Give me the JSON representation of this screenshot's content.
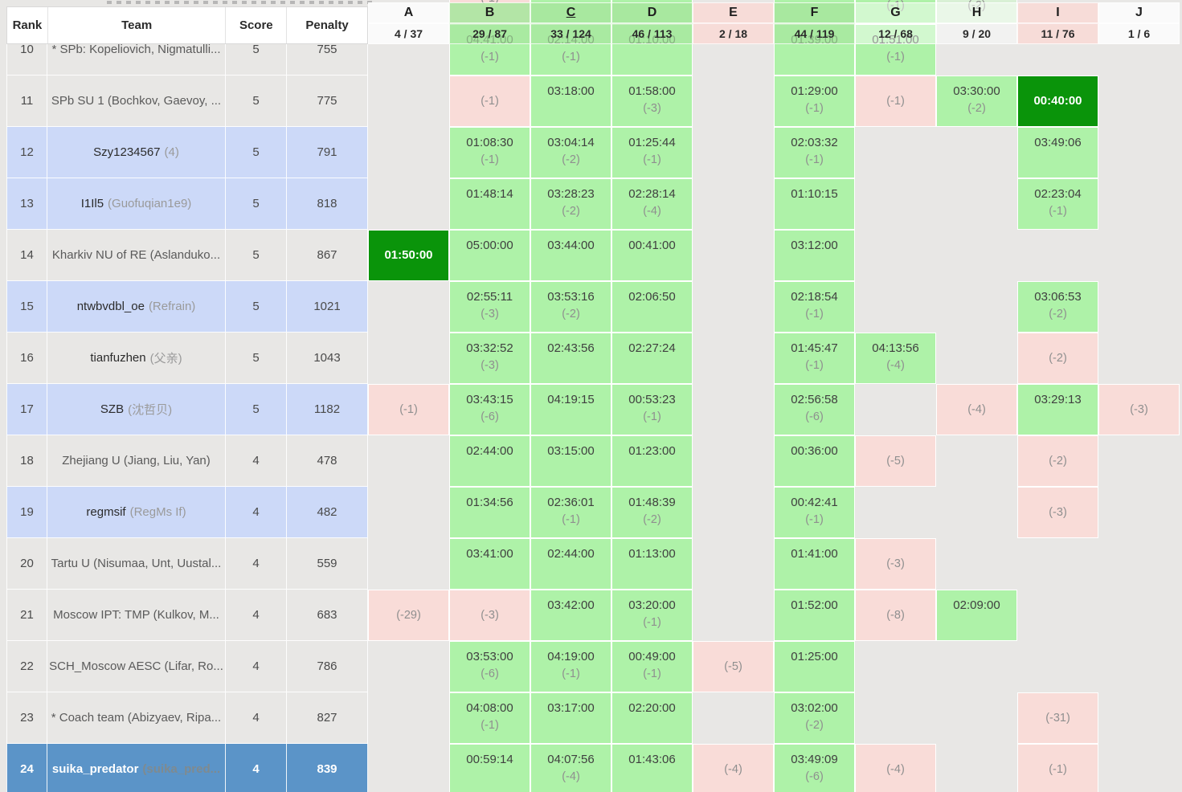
{
  "colors": {
    "page_gray": "#e8e7e5",
    "solved_green": "#aef2a8",
    "failed_pink": "#f9dcd8",
    "first_solver_green": "#0a940a",
    "pale_green": "#d9f0d5",
    "stripe_blue": "#ccd9f8",
    "me_row_blue": "#5b94c8"
  },
  "table": {
    "columns": {
      "rank": "Rank",
      "team": "Team",
      "score": "Score",
      "penalty": "Penalty"
    },
    "problems": [
      {
        "id": "A",
        "ratio": "4 / 37",
        "header_state": "clean"
      },
      {
        "id": "B",
        "ratio": "29 / 87",
        "header_state": "solved"
      },
      {
        "id": "C",
        "ratio": "33 / 124",
        "header_state": "solved",
        "underlined": true
      },
      {
        "id": "D",
        "ratio": "46 / 113",
        "header_state": "solved"
      },
      {
        "id": "E",
        "ratio": "2 / 18",
        "header_state": "failed"
      },
      {
        "id": "F",
        "ratio": "44 / 119",
        "header_state": "solved"
      },
      {
        "id": "G",
        "ratio": "12 / 68",
        "header_state": "translucent"
      },
      {
        "id": "H",
        "ratio": "9 / 20",
        "header_state": "translucent"
      },
      {
        "id": "I",
        "ratio": "11 / 76",
        "header_state": "failed"
      },
      {
        "id": "J",
        "ratio": "1 / 6",
        "header_state": "clean"
      }
    ],
    "partial_top_row": {
      "cells": [
        {
          "p": "B",
          "type": "failed",
          "sub": "(-1)"
        },
        {
          "p": "C",
          "type": "solved",
          "time": ""
        },
        {
          "p": "D",
          "type": "solved",
          "time": ""
        },
        {
          "p": "F",
          "type": "solved",
          "time": ""
        },
        {
          "p": "G",
          "type": "solved",
          "time": "",
          "sub": "(-1)"
        },
        {
          "p": "H",
          "type": "pale",
          "time": "",
          "sub": "(-2)"
        }
      ]
    },
    "rows": [
      {
        "rank": "10",
        "team": "* SPb: Kopeliovich, Nigmatulli...",
        "handle": "",
        "bg": "gray",
        "split": false,
        "score": "5",
        "penalty": "755",
        "cells": [
          {
            "p": "B",
            "type": "solved",
            "time": "04:41:00",
            "sub": "(-1)"
          },
          {
            "p": "C",
            "type": "solved",
            "time": "02:14:00",
            "sub": "(-1)"
          },
          {
            "p": "D",
            "type": "solved",
            "time": "01:10:00"
          },
          {
            "p": "F",
            "type": "solved",
            "time": "01:39:00"
          },
          {
            "p": "G",
            "type": "solved",
            "time": "01:51:00",
            "sub": "(-1)"
          }
        ]
      },
      {
        "rank": "11",
        "team": "SPb SU 1 (Bochkov, Gaevoy, ...",
        "handle": "",
        "bg": "gray",
        "split": false,
        "score": "5",
        "penalty": "775",
        "cells": [
          {
            "p": "B",
            "type": "failed",
            "sub": "(-1)"
          },
          {
            "p": "C",
            "type": "solved",
            "time": "03:18:00"
          },
          {
            "p": "D",
            "type": "solved",
            "time": "01:58:00",
            "sub": "(-3)"
          },
          {
            "p": "F",
            "type": "solved",
            "time": "01:29:00",
            "sub": "(-1)"
          },
          {
            "p": "G",
            "type": "failed",
            "sub": "(-1)"
          },
          {
            "p": "H",
            "type": "solved",
            "time": "03:30:00",
            "sub": "(-2)"
          },
          {
            "p": "I",
            "type": "first",
            "time": "00:40:00"
          }
        ]
      },
      {
        "rank": "12",
        "team": "Szy1234567",
        "handle": "(4)",
        "bg": "blue",
        "split": true,
        "score": "5",
        "penalty": "791",
        "cells": [
          {
            "p": "B",
            "type": "solved",
            "time": "01:08:30",
            "sub": "(-1)"
          },
          {
            "p": "C",
            "type": "solved",
            "time": "03:04:14",
            "sub": "(-2)"
          },
          {
            "p": "D",
            "type": "solved",
            "time": "01:25:44",
            "sub": "(-1)"
          },
          {
            "p": "F",
            "type": "solved",
            "time": "02:03:32",
            "sub": "(-1)"
          },
          {
            "p": "I",
            "type": "solved",
            "time": "03:49:06"
          }
        ]
      },
      {
        "rank": "13",
        "team": "I1Il5",
        "handle": "(Guofuqian1e9)",
        "bg": "blue",
        "split": true,
        "score": "5",
        "penalty": "818",
        "cells": [
          {
            "p": "B",
            "type": "solved",
            "time": "01:48:14"
          },
          {
            "p": "C",
            "type": "solved",
            "time": "03:28:23",
            "sub": "(-2)"
          },
          {
            "p": "D",
            "type": "solved",
            "time": "02:28:14",
            "sub": "(-4)"
          },
          {
            "p": "F",
            "type": "solved",
            "time": "01:10:15"
          },
          {
            "p": "I",
            "type": "solved",
            "time": "02:23:04",
            "sub": "(-1)"
          }
        ]
      },
      {
        "rank": "14",
        "team": "Kharkiv NU of RE (Aslanduko...",
        "handle": "",
        "bg": "gray",
        "split": false,
        "score": "5",
        "penalty": "867",
        "cells": [
          {
            "p": "A",
            "type": "first",
            "time": "01:50:00"
          },
          {
            "p": "B",
            "type": "solved",
            "time": "05:00:00"
          },
          {
            "p": "C",
            "type": "solved",
            "time": "03:44:00"
          },
          {
            "p": "D",
            "type": "solved",
            "time": "00:41:00"
          },
          {
            "p": "F",
            "type": "solved",
            "time": "03:12:00"
          }
        ]
      },
      {
        "rank": "15",
        "team": "ntwbvdbl_oe",
        "handle": "(Refrain)",
        "bg": "blue",
        "split": true,
        "score": "5",
        "penalty": "1021",
        "cells": [
          {
            "p": "B",
            "type": "solved",
            "time": "02:55:11",
            "sub": "(-3)"
          },
          {
            "p": "C",
            "type": "solved",
            "time": "03:53:16",
            "sub": "(-2)"
          },
          {
            "p": "D",
            "type": "solved",
            "time": "02:06:50"
          },
          {
            "p": "F",
            "type": "solved",
            "time": "02:18:54",
            "sub": "(-1)"
          },
          {
            "p": "I",
            "type": "solved",
            "time": "03:06:53",
            "sub": "(-2)"
          }
        ]
      },
      {
        "rank": "16",
        "team": "tianfuzhen",
        "handle": "(父亲)",
        "bg": "gray",
        "split": true,
        "score": "5",
        "penalty": "1043",
        "cells": [
          {
            "p": "B",
            "type": "solved",
            "time": "03:32:52",
            "sub": "(-3)"
          },
          {
            "p": "C",
            "type": "solved",
            "time": "02:43:56"
          },
          {
            "p": "D",
            "type": "solved",
            "time": "02:27:24"
          },
          {
            "p": "F",
            "type": "solved",
            "time": "01:45:47",
            "sub": "(-1)"
          },
          {
            "p": "G",
            "type": "solved",
            "time": "04:13:56",
            "sub": "(-4)"
          },
          {
            "p": "I",
            "type": "failed",
            "sub": "(-2)"
          }
        ]
      },
      {
        "rank": "17",
        "team": "SZB",
        "handle": "(沈哲贝)",
        "bg": "blue",
        "split": true,
        "score": "5",
        "penalty": "1182",
        "cells": [
          {
            "p": "A",
            "type": "failed",
            "sub": "(-1)"
          },
          {
            "p": "B",
            "type": "solved",
            "time": "03:43:15",
            "sub": "(-6)"
          },
          {
            "p": "C",
            "type": "solved",
            "time": "04:19:15"
          },
          {
            "p": "D",
            "type": "solved",
            "time": "00:53:23",
            "sub": "(-1)"
          },
          {
            "p": "F",
            "type": "solved",
            "time": "02:56:58",
            "sub": "(-6)"
          },
          {
            "p": "H",
            "type": "failed",
            "sub": "(-4)"
          },
          {
            "p": "I",
            "type": "solved",
            "time": "03:29:13"
          },
          {
            "p": "J",
            "type": "failed",
            "sub": "(-3)"
          }
        ]
      },
      {
        "rank": "18",
        "team": "Zhejiang U (Jiang, Liu, Yan)",
        "handle": "",
        "bg": "gray",
        "split": false,
        "score": "4",
        "penalty": "478",
        "cells": [
          {
            "p": "B",
            "type": "solved",
            "time": "02:44:00"
          },
          {
            "p": "C",
            "type": "solved",
            "time": "03:15:00"
          },
          {
            "p": "D",
            "type": "solved",
            "time": "01:23:00"
          },
          {
            "p": "F",
            "type": "solved",
            "time": "00:36:00"
          },
          {
            "p": "G",
            "type": "failed",
            "sub": "(-5)"
          },
          {
            "p": "I",
            "type": "failed",
            "sub": "(-2)"
          }
        ]
      },
      {
        "rank": "19",
        "team": "regmsif",
        "handle": "(RegMs If)",
        "bg": "blue",
        "split": true,
        "score": "4",
        "penalty": "482",
        "cells": [
          {
            "p": "B",
            "type": "solved",
            "time": "01:34:56"
          },
          {
            "p": "C",
            "type": "solved",
            "time": "02:36:01",
            "sub": "(-1)"
          },
          {
            "p": "D",
            "type": "solved",
            "time": "01:48:39",
            "sub": "(-2)"
          },
          {
            "p": "F",
            "type": "solved",
            "time": "00:42:41",
            "sub": "(-1)"
          },
          {
            "p": "I",
            "type": "failed",
            "sub": "(-3)"
          }
        ]
      },
      {
        "rank": "20",
        "team": "Tartu U (Nisumaa, Unt, Uustal...",
        "handle": "",
        "bg": "gray",
        "split": false,
        "score": "4",
        "penalty": "559",
        "cells": [
          {
            "p": "B",
            "type": "solved",
            "time": "03:41:00"
          },
          {
            "p": "C",
            "type": "solved",
            "time": "02:44:00"
          },
          {
            "p": "D",
            "type": "solved",
            "time": "01:13:00"
          },
          {
            "p": "F",
            "type": "solved",
            "time": "01:41:00"
          },
          {
            "p": "G",
            "type": "failed",
            "sub": "(-3)"
          }
        ]
      },
      {
        "rank": "21",
        "team": "Moscow IPT: TMP (Kulkov, M...",
        "handle": "",
        "bg": "gray",
        "split": false,
        "score": "4",
        "penalty": "683",
        "cells": [
          {
            "p": "A",
            "type": "failed",
            "sub": "(-29)"
          },
          {
            "p": "B",
            "type": "failed",
            "sub": "(-3)"
          },
          {
            "p": "C",
            "type": "solved",
            "time": "03:42:00"
          },
          {
            "p": "D",
            "type": "solved",
            "time": "03:20:00",
            "sub": "(-1)"
          },
          {
            "p": "F",
            "type": "solved",
            "time": "01:52:00"
          },
          {
            "p": "G",
            "type": "failed",
            "sub": "(-8)"
          },
          {
            "p": "H",
            "type": "solved",
            "time": "02:09:00"
          }
        ]
      },
      {
        "rank": "22",
        "team": "SCH_Moscow AESC (Lifar, Ro...",
        "handle": "",
        "bg": "gray",
        "split": false,
        "score": "4",
        "penalty": "786",
        "cells": [
          {
            "p": "B",
            "type": "solved",
            "time": "03:53:00",
            "sub": "(-6)"
          },
          {
            "p": "C",
            "type": "solved",
            "time": "04:19:00",
            "sub": "(-1)"
          },
          {
            "p": "D",
            "type": "solved",
            "time": "00:49:00",
            "sub": "(-1)"
          },
          {
            "p": "E",
            "type": "failed",
            "sub": "(-5)"
          },
          {
            "p": "F",
            "type": "solved",
            "time": "01:25:00"
          }
        ]
      },
      {
        "rank": "23",
        "team": "* Coach team (Abizyaev, Ripa...",
        "handle": "",
        "bg": "gray",
        "split": false,
        "score": "4",
        "penalty": "827",
        "cells": [
          {
            "p": "B",
            "type": "solved",
            "time": "04:08:00",
            "sub": "(-1)"
          },
          {
            "p": "C",
            "type": "solved",
            "time": "03:17:00"
          },
          {
            "p": "D",
            "type": "solved",
            "time": "02:20:00"
          },
          {
            "p": "F",
            "type": "solved",
            "time": "03:02:00",
            "sub": "(-2)"
          },
          {
            "p": "I",
            "type": "failed",
            "sub": "(-31)"
          }
        ]
      },
      {
        "rank": "24",
        "team": "suika_predator",
        "handle": "(suika_pred...",
        "bg": "me",
        "split": true,
        "score": "4",
        "penalty": "839",
        "cells": [
          {
            "p": "B",
            "type": "solved",
            "time": "00:59:14"
          },
          {
            "p": "C",
            "type": "solved",
            "time": "04:07:56",
            "sub": "(-4)"
          },
          {
            "p": "D",
            "type": "solved",
            "time": "01:43:06"
          },
          {
            "p": "E",
            "type": "failed",
            "sub": "(-4)"
          },
          {
            "p": "F",
            "type": "solved",
            "time": "03:49:09",
            "sub": "(-6)"
          },
          {
            "p": "G",
            "type": "failed",
            "sub": "(-4)"
          },
          {
            "p": "I",
            "type": "failed",
            "sub": "(-1)"
          }
        ]
      }
    ]
  }
}
